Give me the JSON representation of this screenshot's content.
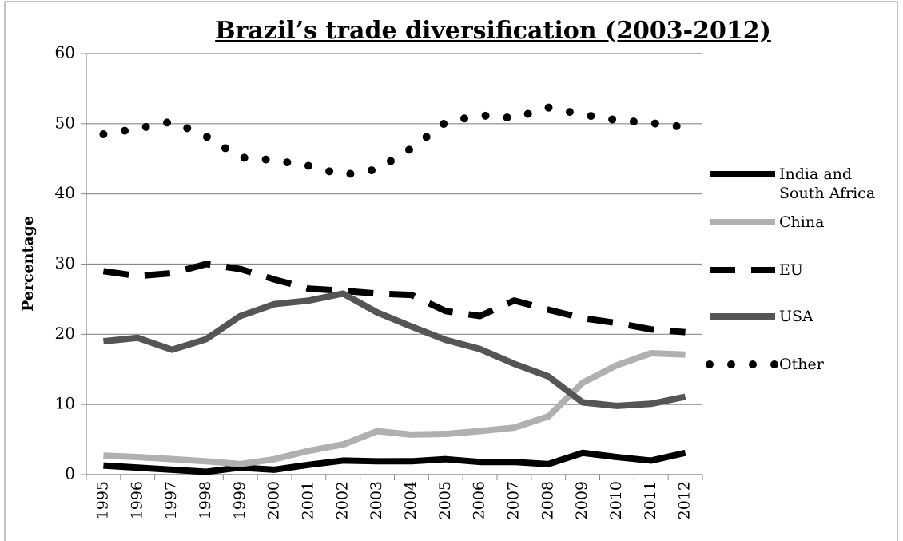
{
  "chart_data": {
    "type": "line",
    "title": "Brazil’s trade diversification (2003-2012)",
    "y_label": "Percentage",
    "categories": [
      "1995",
      "1996",
      "1997",
      "1998",
      "1999",
      "2000",
      "2001",
      "2002",
      "2003",
      "2004",
      "2005",
      "2006",
      "2007",
      "2008",
      "2009",
      "2010",
      "2011",
      "2012"
    ],
    "series": [
      {
        "name": "India and South Africa",
        "color": "#000000",
        "style": "solid",
        "values": [
          1.3,
          1.0,
          0.7,
          0.4,
          1.0,
          0.7,
          1.4,
          2.0,
          1.9,
          1.9,
          2.2,
          1.8,
          1.8,
          1.5,
          3.1,
          2.5,
          2.0,
          3.1
        ]
      },
      {
        "name": "China",
        "color": "#b0b0b0",
        "style": "solid",
        "values": [
          2.7,
          2.5,
          2.2,
          1.9,
          1.5,
          2.2,
          3.4,
          4.3,
          6.2,
          5.7,
          5.8,
          6.2,
          6.7,
          8.3,
          13.1,
          15.6,
          17.3,
          17.1
        ]
      },
      {
        "name": "EU",
        "color": "#000000",
        "style": "dashed",
        "values": [
          29.0,
          28.3,
          28.7,
          30.0,
          29.3,
          27.8,
          26.5,
          26.2,
          25.8,
          25.6,
          23.3,
          22.6,
          24.8,
          23.5,
          22.3,
          21.6,
          20.7,
          20.3
        ]
      },
      {
        "name": "USA",
        "color": "#555555",
        "style": "solid",
        "values": [
          19.0,
          19.5,
          17.8,
          19.3,
          22.6,
          24.3,
          24.8,
          25.8,
          23.1,
          21.1,
          19.2,
          17.9,
          15.8,
          14.0,
          10.3,
          9.8,
          10.1,
          11.1
        ]
      },
      {
        "name": "Other",
        "color": "#000000",
        "style": "dotted",
        "values": [
          48.5,
          49.3,
          50.3,
          48.2,
          45.2,
          44.8,
          44.0,
          42.7,
          43.5,
          46.5,
          50.2,
          51.2,
          50.8,
          52.3,
          51.3,
          50.5,
          50.1,
          49.5
        ]
      }
    ],
    "ylim": [
      0,
      60
    ],
    "yticks": [
      0,
      10,
      20,
      30,
      40,
      50,
      60
    ],
    "grid": true,
    "legend": "right"
  }
}
